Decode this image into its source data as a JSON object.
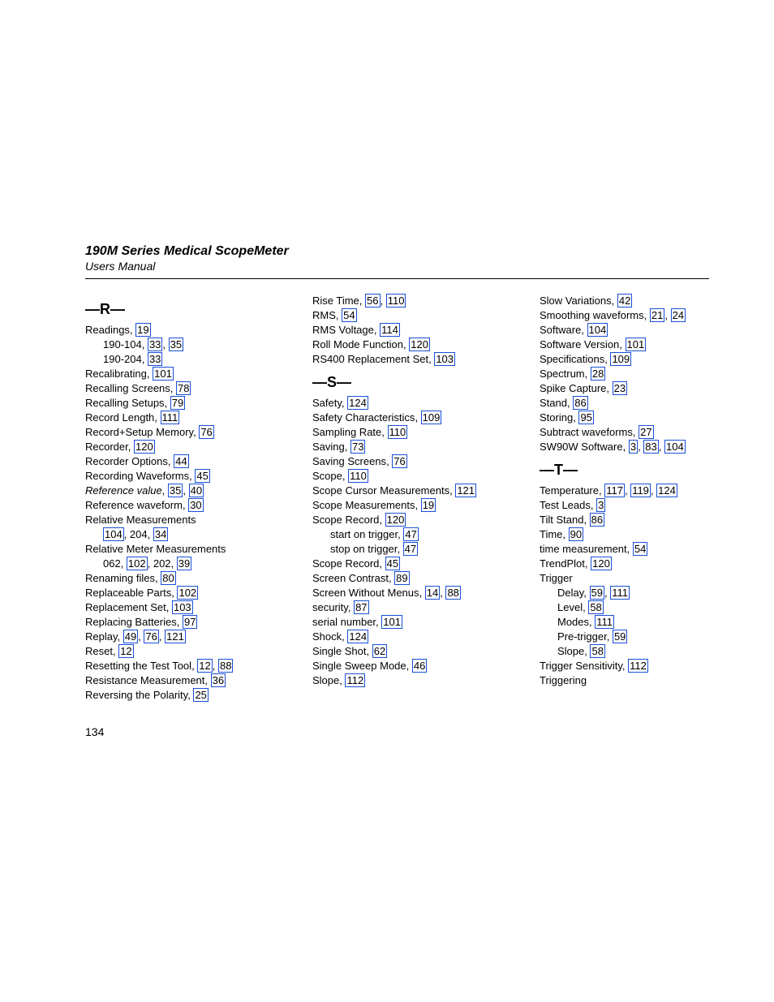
{
  "header": {
    "title": "190M Series Medical ScopeMeter",
    "subtitle": "Users Manual"
  },
  "pageNumber": "134",
  "link_color": "#1a4fd6",
  "columns": [
    {
      "blocks": [
        {
          "type": "letter",
          "text": "—R—"
        },
        {
          "type": "entry",
          "label": "Readings",
          "pages": [
            "19"
          ]
        },
        {
          "type": "sub",
          "label": "190-104",
          "pages": [
            "33",
            "35"
          ]
        },
        {
          "type": "sub",
          "label": "190-204",
          "pages": [
            "33"
          ]
        },
        {
          "type": "entry",
          "label": "Recalibrating",
          "pages": [
            "101"
          ]
        },
        {
          "type": "entry",
          "label": "Recalling Screens",
          "pages": [
            "78"
          ]
        },
        {
          "type": "entry",
          "label": "Recalling Setups",
          "pages": [
            "79"
          ]
        },
        {
          "type": "entry",
          "label": "Record Length",
          "pages": [
            "111"
          ]
        },
        {
          "type": "entry",
          "label": "Record+Setup Memory",
          "pages": [
            "76"
          ]
        },
        {
          "type": "entry",
          "label": "Recorder",
          "pages": [
            "120"
          ]
        },
        {
          "type": "entry",
          "label": "Recorder Options",
          "pages": [
            "44"
          ]
        },
        {
          "type": "entry",
          "label": "Recording Waveforms",
          "pages": [
            "45"
          ]
        },
        {
          "type": "entry",
          "label": "Reference value",
          "italic": true,
          "pages": [
            "35",
            "40"
          ]
        },
        {
          "type": "entry",
          "label": "Reference waveform",
          "pages": [
            "30"
          ]
        },
        {
          "type": "entry",
          "label": "Relative Measurements",
          "pages": []
        },
        {
          "type": "sub",
          "label": "",
          "segments": [
            {
              "link": "104"
            },
            {
              "text": ", 204, "
            },
            {
              "link": "34"
            }
          ]
        },
        {
          "type": "entry",
          "label": "Relative Meter Measurements",
          "pages": []
        },
        {
          "type": "sub",
          "label": "",
          "segments": [
            {
              "text": "062, "
            },
            {
              "link": "102"
            },
            {
              "text": ", 202, "
            },
            {
              "link": "39"
            }
          ]
        },
        {
          "type": "entry",
          "label": "Renaming files",
          "pages": [
            "80"
          ]
        },
        {
          "type": "entry",
          "label": "Replaceable Parts",
          "pages": [
            "102"
          ]
        },
        {
          "type": "entry",
          "label": "Replacement Set",
          "pages": [
            "103"
          ]
        },
        {
          "type": "entry",
          "label": "Replacing Batteries",
          "pages": [
            "97"
          ]
        },
        {
          "type": "entry",
          "label": "Replay",
          "pages": [
            "49",
            "76",
            "121"
          ]
        },
        {
          "type": "entry",
          "label": "Reset",
          "pages": [
            "12"
          ]
        },
        {
          "type": "entry",
          "label": "Resetting the Test Tool",
          "pages": [
            "12",
            "88"
          ]
        },
        {
          "type": "entry",
          "label": "Resistance Measurement",
          "pages": [
            "36"
          ]
        },
        {
          "type": "entry",
          "label": "Reversing the Polarity",
          "pages": [
            "25"
          ]
        }
      ]
    },
    {
      "blocks": [
        {
          "type": "entry",
          "label": "Rise Time",
          "pages": [
            "56",
            "110"
          ]
        },
        {
          "type": "entry",
          "label": "RMS",
          "pages": [
            "54"
          ]
        },
        {
          "type": "entry",
          "label": "RMS Voltage",
          "pages": [
            "114"
          ]
        },
        {
          "type": "entry",
          "label": "Roll Mode Function",
          "pages": [
            "120"
          ]
        },
        {
          "type": "entry",
          "label": "RS400 Replacement Set",
          "pages": [
            "103"
          ]
        },
        {
          "type": "letter",
          "text": "—S—"
        },
        {
          "type": "entry",
          "label": "Safety",
          "pages": [
            "124"
          ]
        },
        {
          "type": "entry",
          "label": "Safety Characteristics",
          "pages": [
            "109"
          ]
        },
        {
          "type": "entry",
          "label": "Sampling Rate",
          "pages": [
            "110"
          ]
        },
        {
          "type": "entry",
          "label": "Saving",
          "pages": [
            "73"
          ]
        },
        {
          "type": "entry",
          "label": "Saving Screens",
          "pages": [
            "76"
          ]
        },
        {
          "type": "entry",
          "label": "Scope",
          "pages": [
            "110"
          ]
        },
        {
          "type": "entry",
          "label": "Scope Cursor Measurements",
          "pages": [
            "121"
          ]
        },
        {
          "type": "entry",
          "label": "Scope Measurements",
          "pages": [
            "19"
          ]
        },
        {
          "type": "entry",
          "label": "Scope Record",
          "pages": [
            "120"
          ]
        },
        {
          "type": "sub",
          "label": "start on trigger",
          "pages": [
            "47"
          ]
        },
        {
          "type": "sub",
          "label": "stop on trigger",
          "pages": [
            "47"
          ]
        },
        {
          "type": "entry",
          "label": "Scope Record",
          "pages": [
            "45"
          ]
        },
        {
          "type": "entry",
          "label": "Screen Contrast",
          "pages": [
            "89"
          ]
        },
        {
          "type": "entry",
          "label": "Screen Without Menus",
          "pages": [
            "14",
            "88"
          ]
        },
        {
          "type": "entry",
          "label": "security",
          "pages": [
            "87"
          ]
        },
        {
          "type": "entry",
          "label": "serial number",
          "pages": [
            "101"
          ]
        },
        {
          "type": "entry",
          "label": "Shock",
          "pages": [
            "124"
          ]
        },
        {
          "type": "entry",
          "label": "Single Shot",
          "pages": [
            "62"
          ]
        },
        {
          "type": "entry",
          "label": "Single Sweep Mode",
          "pages": [
            "46"
          ]
        },
        {
          "type": "entry",
          "label": "Slope",
          "pages": [
            "112"
          ]
        }
      ]
    },
    {
      "blocks": [
        {
          "type": "entry",
          "label": "Slow Variations",
          "pages": [
            "42"
          ]
        },
        {
          "type": "entry",
          "label": "Smoothing waveforms",
          "pages": [
            "21",
            "24"
          ]
        },
        {
          "type": "entry",
          "label": "Software",
          "pages": [
            "104"
          ]
        },
        {
          "type": "entry",
          "label": "Software Version",
          "pages": [
            "101"
          ]
        },
        {
          "type": "entry",
          "label": "Specifications",
          "pages": [
            "109"
          ]
        },
        {
          "type": "entry",
          "label": "Spectrum",
          "pages": [
            "28"
          ]
        },
        {
          "type": "entry",
          "label": "Spike Capture",
          "pages": [
            "23"
          ]
        },
        {
          "type": "entry",
          "label": "Stand",
          "pages": [
            "86"
          ]
        },
        {
          "type": "entry",
          "label": "Storing",
          "pages": [
            "95"
          ]
        },
        {
          "type": "entry",
          "label": "Subtract waveforms",
          "pages": [
            "27"
          ]
        },
        {
          "type": "entry",
          "label": "SW90W Software",
          "pages": [
            "3",
            "83",
            "104"
          ]
        },
        {
          "type": "letter",
          "text": "—T—"
        },
        {
          "type": "entry",
          "label": "Temperature",
          "pages": [
            "117",
            "119",
            "124"
          ]
        },
        {
          "type": "entry",
          "label": "Test Leads",
          "pages": [
            "3"
          ]
        },
        {
          "type": "entry",
          "label": "Tilt Stand",
          "pages": [
            "86"
          ]
        },
        {
          "type": "entry",
          "label": "Time",
          "pages": [
            "90"
          ]
        },
        {
          "type": "entry",
          "label": "time measurement",
          "pages": [
            "54"
          ]
        },
        {
          "type": "entry",
          "label": "TrendPlot",
          "pages": [
            "120"
          ]
        },
        {
          "type": "entry",
          "label": "Trigger",
          "pages": []
        },
        {
          "type": "sub",
          "label": "Delay",
          "pages": [
            "59",
            "111"
          ]
        },
        {
          "type": "sub",
          "label": "Level",
          "pages": [
            "58"
          ]
        },
        {
          "type": "sub",
          "label": "Modes",
          "pages": [
            "111"
          ]
        },
        {
          "type": "sub",
          "label": "Pre-trigger",
          "pages": [
            "59"
          ]
        },
        {
          "type": "sub",
          "label": "Slope",
          "pages": [
            "58"
          ]
        },
        {
          "type": "entry",
          "label": "Trigger Sensitivity",
          "pages": [
            "112"
          ]
        },
        {
          "type": "entry",
          "label": "Triggering",
          "pages": []
        }
      ]
    }
  ]
}
